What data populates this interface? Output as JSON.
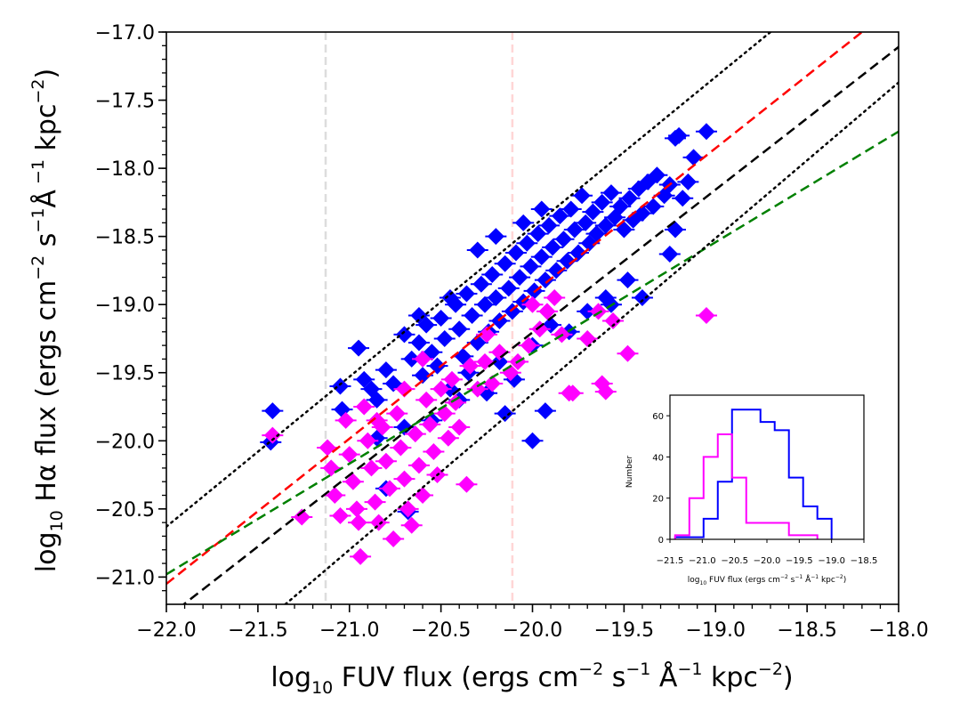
{
  "chart_data": [
    {
      "type": "scatter",
      "title": "",
      "xlabel": {
        "prefix": "log",
        "sub": "10",
        "text": " FUV flux (ergs cm",
        "u1": "−2",
        "t2": " s",
        "u2": "−1",
        "t3": " Å",
        "u3": "−1",
        "t4": " kpc",
        "u4": "−2",
        "t5": ")"
      },
      "ylabel": {
        "prefix": "log",
        "sub": "10",
        "text": " Hα flux (ergs cm",
        "u1": "−2",
        "t2": " s",
        "u2": "−1",
        "t3": "Å",
        "u3": " −1",
        "t4": " kpc",
        "u4": "−2",
        "t5": ")"
      },
      "xlim": [
        -22.0,
        -18.0
      ],
      "ylim": [
        -21.2,
        -17.0
      ],
      "xticks": [
        -22.0,
        -21.5,
        -21.0,
        -20.5,
        -20.0,
        -19.5,
        -19.0,
        -18.5,
        -18.0
      ],
      "xtick_labels": [
        "−22.0",
        "−21.5",
        "−21.0",
        "−20.5",
        "−20.0",
        "−19.5",
        "−19.0",
        "−18.5",
        "−18.0"
      ],
      "yticks": [
        -21.0,
        -20.5,
        -20.0,
        -19.5,
        -19.0,
        -18.5,
        -18.0,
        -17.5,
        -17.0
      ],
      "ytick_labels": [
        "−21.0",
        "−20.5",
        "−20.0",
        "−19.5",
        "−19.0",
        "−18.5",
        "−18.0",
        "−17.5",
        "−17.0"
      ],
      "vlines": [
        {
          "x": -21.13,
          "color": "#dddddd",
          "style": "dashed"
        },
        {
          "x": -20.11,
          "color": "#ffd6d6",
          "style": "dashed"
        }
      ],
      "lines": [
        {
          "name": "fit-red",
          "color": "#ff0000",
          "style": "dashed",
          "points": [
            [
              -22.0,
              -21.05
            ],
            [
              -18.2,
              -17.0
            ]
          ]
        },
        {
          "name": "one-to-one",
          "color": "#000000",
          "style": "dashed",
          "points": [
            [
              -22.0,
              -21.3
            ],
            [
              -17.8,
              -16.9
            ]
          ]
        },
        {
          "name": "fit-green",
          "color": "#008000",
          "style": "dashed",
          "points": [
            [
              -22.0,
              -20.98
            ],
            [
              -18.0,
              -17.73
            ]
          ]
        },
        {
          "name": "upper-dotted",
          "color": "#000000",
          "style": "dotted",
          "points": [
            [
              -22.0,
              -20.63
            ],
            [
              -18.7,
              -17.0
            ]
          ]
        },
        {
          "name": "lower-dotted",
          "color": "#000000",
          "style": "dotted",
          "points": [
            [
              -21.35,
              -21.2
            ],
            [
              -18.0,
              -17.37
            ]
          ]
        }
      ],
      "series": [
        {
          "name": "blue",
          "color": "#0000ff",
          "points": [
            [
              -21.42,
              -19.78
            ],
            [
              -21.43,
              -20.01
            ],
            [
              -21.05,
              -19.6
            ],
            [
              -21.04,
              -19.77
            ],
            [
              -20.95,
              -19.32
            ],
            [
              -20.92,
              -19.55
            ],
            [
              -20.88,
              -19.62
            ],
            [
              -20.85,
              -19.7
            ],
            [
              -20.8,
              -19.48
            ],
            [
              -20.76,
              -19.58
            ],
            [
              -20.7,
              -19.22
            ],
            [
              -20.66,
              -19.4
            ],
            [
              -20.62,
              -19.28
            ],
            [
              -20.6,
              -19.52
            ],
            [
              -20.58,
              -19.15
            ],
            [
              -20.55,
              -19.35
            ],
            [
              -20.52,
              -19.45
            ],
            [
              -20.5,
              -19.1
            ],
            [
              -20.48,
              -19.25
            ],
            [
              -20.45,
              -19.62
            ],
            [
              -20.42,
              -19.0
            ],
            [
              -20.4,
              -19.18
            ],
            [
              -20.38,
              -19.38
            ],
            [
              -20.36,
              -18.92
            ],
            [
              -20.33,
              -19.08
            ],
            [
              -20.3,
              -19.28
            ],
            [
              -20.28,
              -18.85
            ],
            [
              -20.26,
              -19.0
            ],
            [
              -20.24,
              -19.2
            ],
            [
              -20.22,
              -18.78
            ],
            [
              -20.2,
              -18.95
            ],
            [
              -20.18,
              -19.12
            ],
            [
              -20.15,
              -18.7
            ],
            [
              -20.13,
              -18.88
            ],
            [
              -20.11,
              -19.05
            ],
            [
              -20.09,
              -18.62
            ],
            [
              -20.07,
              -18.8
            ],
            [
              -20.05,
              -18.98
            ],
            [
              -20.03,
              -18.55
            ],
            [
              -20.01,
              -18.72
            ],
            [
              -19.99,
              -18.9
            ],
            [
              -19.97,
              -18.48
            ],
            [
              -19.95,
              -18.65
            ],
            [
              -19.93,
              -18.82
            ],
            [
              -19.91,
              -18.42
            ],
            [
              -19.89,
              -18.58
            ],
            [
              -19.87,
              -18.75
            ],
            [
              -19.85,
              -18.35
            ],
            [
              -19.83,
              -18.52
            ],
            [
              -19.81,
              -18.68
            ],
            [
              -19.79,
              -18.3
            ],
            [
              -19.77,
              -18.45
            ],
            [
              -19.75,
              -18.62
            ],
            [
              -19.73,
              -18.2
            ],
            [
              -19.71,
              -18.4
            ],
            [
              -19.69,
              -18.55
            ],
            [
              -19.67,
              -18.32
            ],
            [
              -19.65,
              -18.48
            ],
            [
              -19.62,
              -18.25
            ],
            [
              -19.6,
              -18.42
            ],
            [
              -19.57,
              -18.18
            ],
            [
              -19.55,
              -18.36
            ],
            [
              -19.52,
              -18.28
            ],
            [
              -19.5,
              -18.45
            ],
            [
              -19.47,
              -18.22
            ],
            [
              -19.45,
              -18.38
            ],
            [
              -19.42,
              -18.15
            ],
            [
              -19.4,
              -18.33
            ],
            [
              -19.37,
              -18.1
            ],
            [
              -19.34,
              -18.28
            ],
            [
              -19.32,
              -18.05
            ],
            [
              -19.28,
              -18.2
            ],
            [
              -19.25,
              -18.12
            ],
            [
              -19.22,
              -17.78
            ],
            [
              -19.2,
              -17.76
            ],
            [
              -19.18,
              -18.22
            ],
            [
              -19.15,
              -18.1
            ],
            [
              -19.12,
              -17.92
            ],
            [
              -19.05,
              -17.73
            ],
            [
              -19.22,
              -18.45
            ],
            [
              -19.25,
              -18.63
            ],
            [
              -19.48,
              -18.82
            ],
            [
              -19.57,
              -19.0
            ],
            [
              -19.4,
              -18.95
            ],
            [
              -19.93,
              -19.78
            ],
            [
              -20.0,
              -20.0
            ],
            [
              -20.15,
              -19.8
            ],
            [
              -20.85,
              -19.98
            ],
            [
              -20.8,
              -20.35
            ],
            [
              -20.68,
              -20.52
            ],
            [
              -20.0,
              -19.3
            ],
            [
              -20.18,
              -19.42
            ],
            [
              -20.1,
              -19.55
            ],
            [
              -20.25,
              -19.65
            ],
            [
              -19.8,
              -19.2
            ],
            [
              -19.7,
              -19.05
            ],
            [
              -20.7,
              -19.9
            ],
            [
              -20.55,
              -19.85
            ],
            [
              -20.4,
              -19.7
            ],
            [
              -20.35,
              -19.5
            ],
            [
              -19.9,
              -19.15
            ],
            [
              -19.6,
              -18.95
            ],
            [
              -20.62,
              -19.08
            ],
            [
              -20.45,
              -18.95
            ],
            [
              -20.05,
              -18.4
            ],
            [
              -19.95,
              -18.3
            ],
            [
              -20.3,
              -18.6
            ],
            [
              -20.2,
              -18.5
            ]
          ]
        },
        {
          "name": "magenta",
          "color": "#ff00ff",
          "points": [
            [
              -21.42,
              -19.96
            ],
            [
              -21.26,
              -20.56
            ],
            [
              -21.12,
              -20.05
            ],
            [
              -21.1,
              -20.2
            ],
            [
              -21.08,
              -20.4
            ],
            [
              -21.05,
              -20.55
            ],
            [
              -21.02,
              -19.85
            ],
            [
              -21.0,
              -20.1
            ],
            [
              -20.98,
              -20.3
            ],
            [
              -20.96,
              -20.5
            ],
            [
              -20.94,
              -20.85
            ],
            [
              -20.92,
              -19.75
            ],
            [
              -20.9,
              -20.0
            ],
            [
              -20.88,
              -20.2
            ],
            [
              -20.86,
              -20.45
            ],
            [
              -20.84,
              -20.6
            ],
            [
              -20.82,
              -19.9
            ],
            [
              -20.8,
              -20.15
            ],
            [
              -20.78,
              -20.35
            ],
            [
              -20.76,
              -20.72
            ],
            [
              -20.74,
              -19.8
            ],
            [
              -20.72,
              -20.05
            ],
            [
              -20.7,
              -20.28
            ],
            [
              -20.68,
              -20.5
            ],
            [
              -20.66,
              -20.62
            ],
            [
              -20.64,
              -19.95
            ],
            [
              -20.62,
              -20.18
            ],
            [
              -20.6,
              -20.4
            ],
            [
              -20.58,
              -19.7
            ],
            [
              -20.56,
              -19.88
            ],
            [
              -20.54,
              -20.08
            ],
            [
              -20.52,
              -20.25
            ],
            [
              -20.5,
              -19.62
            ],
            [
              -20.48,
              -19.8
            ],
            [
              -20.46,
              -19.98
            ],
            [
              -20.44,
              -19.55
            ],
            [
              -20.42,
              -19.72
            ],
            [
              -20.4,
              -19.9
            ],
            [
              -20.36,
              -20.32
            ],
            [
              -20.34,
              -19.45
            ],
            [
              -20.3,
              -19.62
            ],
            [
              -20.26,
              -19.42
            ],
            [
              -20.22,
              -19.58
            ],
            [
              -20.18,
              -19.35
            ],
            [
              -20.12,
              -19.5
            ],
            [
              -20.08,
              -19.42
            ],
            [
              -20.02,
              -19.3
            ],
            [
              -19.96,
              -19.18
            ],
            [
              -19.92,
              -19.05
            ],
            [
              -19.88,
              -18.95
            ],
            [
              -19.84,
              -19.22
            ],
            [
              -19.8,
              -19.65
            ],
            [
              -19.7,
              -19.25
            ],
            [
              -19.64,
              -19.05
            ],
            [
              -19.56,
              -19.12
            ],
            [
              -19.48,
              -19.36
            ],
            [
              -19.62,
              -19.58
            ],
            [
              -19.6,
              -19.64
            ],
            [
              -19.78,
              -19.65
            ],
            [
              -19.05,
              -19.08
            ],
            [
              -20.0,
              -19.0
            ],
            [
              -20.25,
              -19.22
            ],
            [
              -20.6,
              -19.4
            ],
            [
              -20.7,
              -19.62
            ],
            [
              -20.85,
              -19.85
            ],
            [
              -20.95,
              -20.6
            ]
          ]
        }
      ]
    },
    {
      "type": "histogram",
      "title": "",
      "xlabel": {
        "prefix": "log",
        "sub": "10",
        "text": " FUV flux (ergs cm",
        "u1": "−2",
        "t2": " s",
        "u2": "−1",
        "t3": " Å",
        "u3": "−1",
        "t4": " kpc",
        "u4": "−2",
        "t5": ")"
      },
      "ylabel": "Number",
      "xlim": [
        -21.5,
        -18.5
      ],
      "ylim": [
        0,
        70
      ],
      "xticks": [
        -21.5,
        -21.0,
        -20.5,
        -20.0,
        -19.5,
        -19.0,
        -18.5
      ],
      "xtick_labels": [
        "−21.5",
        "−21.0",
        "−20.5",
        "−20.0",
        "−19.5",
        "−19.0",
        "−18.5"
      ],
      "yticks": [
        0,
        20,
        40,
        60
      ],
      "ytick_labels": [
        "0",
        "20",
        "40",
        "60"
      ],
      "series": [
        {
          "name": "blue",
          "color": "#0000ff",
          "bin_edges": [
            -21.42,
            -21.2,
            -20.98,
            -20.76,
            -20.54,
            -20.32,
            -20.1,
            -19.88,
            -19.66,
            -19.44,
            -19.22,
            -19.0
          ],
          "counts": [
            1,
            1,
            10,
            28,
            63,
            63,
            57,
            53,
            30,
            16,
            10
          ]
        },
        {
          "name": "magenta",
          "color": "#ff00ff",
          "bin_edges": [
            -21.42,
            -21.2,
            -20.98,
            -20.76,
            -20.54,
            -20.32,
            -20.1,
            -19.88,
            -19.66,
            -19.44,
            -19.22
          ],
          "counts": [
            2,
            20,
            40,
            51,
            30,
            8,
            8,
            8,
            2,
            2
          ]
        }
      ]
    }
  ]
}
